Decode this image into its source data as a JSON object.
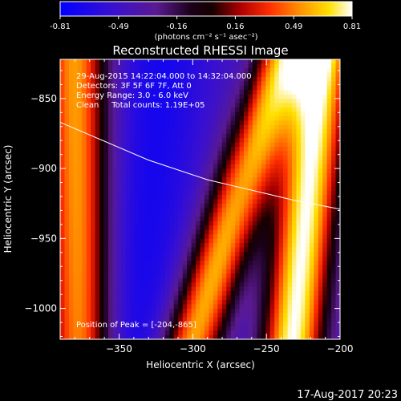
{
  "chart_data": {
    "type": "heatmap",
    "title": "Reconstructed RHESSI Image",
    "xlabel": "Heliocentric X (arcsec)",
    "ylabel": "Heliocentric Y (arcsec)",
    "xlim": [
      -390,
      -200
    ],
    "ylim": [
      -1022,
      -822
    ],
    "x_ticks": [
      -350,
      -300,
      -250,
      -200
    ],
    "y_ticks": [
      -850,
      -900,
      -950,
      -1000
    ],
    "colorbar": {
      "min": -0.81,
      "max": 0.81,
      "ticks": [
        "-0.81",
        "-0.49",
        "-0.16",
        "0.16",
        "0.49",
        "0.81"
      ],
      "units": "(photons cm⁻² s⁻¹ asec⁻²)"
    },
    "annotations": [
      "29-Aug-2015 14:22:04.000 to 14:32:04.000",
      "Detectors: 3F 5F 6F 7F, Att 0",
      "Energy Range: 3.0 - 6.0 keV",
      "Clean     Total counts: 1.19E+05"
    ],
    "peak_label": "Position of Peak = [-204,-865]",
    "limb_curve": [
      [
        -390,
        -867
      ],
      [
        -370,
        -876
      ],
      [
        -350,
        -885
      ],
      [
        -330,
        -894
      ],
      [
        -310,
        -901
      ],
      [
        -290,
        -908
      ],
      [
        -270,
        -913
      ],
      [
        -250,
        -918
      ],
      [
        -230,
        -923
      ],
      [
        -210,
        -927
      ],
      [
        -200,
        -929
      ]
    ],
    "ridges": [
      {
        "name": "left-bright",
        "x_top": -380,
        "x_bottom": -377,
        "level": 0.55
      },
      {
        "name": "middle-bright",
        "x_top": -238,
        "x_bottom": -300,
        "level": 0.6
      },
      {
        "name": "right-bright",
        "x_top": -212,
        "x_bottom": -232,
        "level": 0.81
      }
    ],
    "troughs": [
      {
        "name": "left-trough",
        "x_top": -320,
        "x_bottom": -340,
        "level": -0.7
      },
      {
        "name": "right-trough",
        "x_top": -265,
        "x_bottom": -268,
        "level": -0.5
      }
    ]
  },
  "footer": {
    "date": "17-Aug-2017 20:23"
  }
}
